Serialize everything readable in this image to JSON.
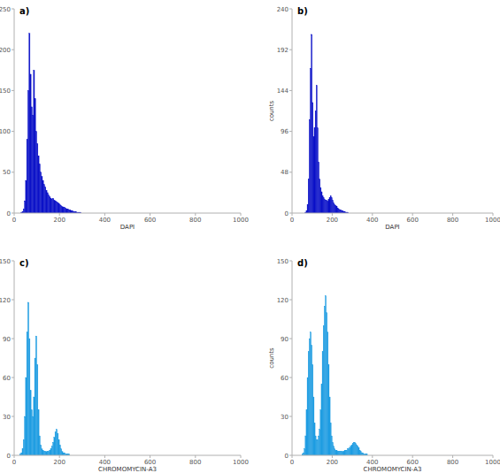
{
  "chart_data": [
    {
      "type": "histogram",
      "title": "a)",
      "x_label": "DAPI",
      "color": "#0c12c8",
      "bins": [
        0,
        5,
        10,
        15,
        20,
        25,
        30,
        35,
        40,
        45,
        50,
        55,
        60,
        65,
        70,
        75,
        80,
        85,
        90,
        95,
        100,
        105,
        110,
        115,
        120,
        125,
        130,
        135,
        140,
        145,
        150,
        155,
        160,
        165,
        170,
        175,
        180,
        185,
        190,
        195,
        200,
        205,
        210,
        215,
        220,
        225,
        230,
        235,
        240,
        245,
        250,
        255,
        260,
        265,
        270,
        275,
        280,
        285,
        290,
        295,
        300,
        305,
        310,
        315,
        320,
        325,
        330,
        335,
        340,
        345,
        350,
        355,
        360,
        365,
        370,
        375,
        380,
        385,
        390,
        395,
        400
      ],
      "values": [
        0,
        0,
        0,
        0,
        0,
        0,
        1,
        2,
        5,
        15,
        40,
        90,
        150,
        220,
        170,
        130,
        120,
        175,
        140,
        100,
        85,
        70,
        60,
        50,
        45,
        40,
        35,
        32,
        28,
        25,
        22,
        20,
        18,
        17,
        18,
        16,
        15,
        14,
        13,
        12,
        10,
        9,
        8,
        7,
        7,
        6,
        5,
        5,
        4,
        4,
        3,
        3,
        2,
        2,
        2,
        1,
        1,
        1,
        1,
        0,
        0,
        0,
        0,
        0,
        0,
        0,
        0,
        0,
        0,
        0,
        0,
        0,
        0,
        0,
        0,
        0,
        0,
        0,
        0,
        0
      ],
      "xlim": [
        0,
        1000
      ],
      "ylim": [
        0,
        250
      ],
      "xticks": [
        0,
        200,
        400,
        600,
        800,
        1000
      ],
      "yticks": [
        0,
        50,
        100,
        150,
        200,
        250
      ]
    },
    {
      "type": "histogram",
      "title": "b)",
      "x_label": "DAPI",
      "y_label": "counts",
      "color": "#0c12c8",
      "bins": [
        0,
        5,
        10,
        15,
        20,
        25,
        30,
        35,
        40,
        45,
        50,
        55,
        60,
        65,
        70,
        75,
        80,
        85,
        90,
        95,
        100,
        105,
        110,
        115,
        120,
        125,
        130,
        135,
        140,
        145,
        150,
        155,
        160,
        165,
        170,
        175,
        180,
        185,
        190,
        195,
        200,
        205,
        210,
        215,
        220,
        225,
        230,
        235,
        240,
        245,
        250,
        255,
        260,
        265,
        270,
        275,
        280,
        285,
        290,
        295,
        300,
        305,
        310,
        315,
        320,
        325,
        330,
        335,
        340,
        345,
        350,
        355,
        360,
        365,
        370,
        375,
        380,
        385,
        390,
        395,
        400
      ],
      "values": [
        0,
        0,
        0,
        0,
        0,
        0,
        0,
        0,
        0,
        0,
        0,
        0,
        0,
        1,
        3,
        10,
        40,
        110,
        170,
        210,
        130,
        90,
        100,
        120,
        150,
        100,
        60,
        40,
        30,
        25,
        20,
        18,
        16,
        15,
        15,
        14,
        16,
        18,
        20,
        18,
        15,
        12,
        10,
        9,
        8,
        6,
        5,
        4,
        4,
        3,
        3,
        2,
        2,
        1,
        1,
        1,
        0,
        0,
        0,
        0,
        0,
        0,
        0,
        0,
        0,
        0,
        0,
        0,
        0,
        0,
        0,
        0,
        0,
        0,
        0,
        0,
        0,
        0,
        0,
        0
      ],
      "xlim": [
        0,
        1000
      ],
      "ylim": [
        0,
        240
      ],
      "xticks": [
        0,
        200,
        400,
        600,
        800,
        1000
      ],
      "yticks": [
        0,
        48,
        96,
        144,
        192,
        240
      ]
    },
    {
      "type": "histogram",
      "title": "c)",
      "x_label": "CHROMOMYCIN-A3",
      "color": "#1f9de2",
      "bins": [
        0,
        5,
        10,
        15,
        20,
        25,
        30,
        35,
        40,
        45,
        50,
        55,
        60,
        65,
        70,
        75,
        80,
        85,
        90,
        95,
        100,
        105,
        110,
        115,
        120,
        125,
        130,
        135,
        140,
        145,
        150,
        155,
        160,
        165,
        170,
        175,
        180,
        185,
        190,
        195,
        200,
        205,
        210,
        215,
        220,
        225,
        230,
        235,
        240,
        245,
        250,
        255,
        260,
        265,
        270,
        275,
        280,
        285,
        290,
        295,
        300,
        305,
        310,
        315,
        320,
        325,
        330,
        335,
        340,
        345,
        350,
        355,
        360,
        365,
        370,
        375,
        380,
        385,
        390,
        395,
        400
      ],
      "values": [
        0,
        0,
        0,
        0,
        0,
        1,
        2,
        5,
        12,
        30,
        60,
        95,
        118,
        90,
        50,
        35,
        30,
        45,
        75,
        92,
        70,
        35,
        15,
        8,
        5,
        4,
        3,
        3,
        3,
        3,
        3,
        4,
        5,
        7,
        10,
        14,
        18,
        20,
        17,
        12,
        8,
        5,
        3,
        2,
        2,
        1,
        1,
        1,
        1,
        0,
        0,
        0,
        0,
        0,
        0,
        0,
        0,
        0,
        0,
        0,
        0,
        0,
        0,
        0,
        0,
        0,
        0,
        0,
        0,
        0,
        0,
        0,
        0,
        0,
        0,
        0,
        0,
        0,
        0,
        0
      ],
      "xlim": [
        0,
        1000
      ],
      "ylim": [
        0,
        150
      ],
      "xticks": [
        0,
        200,
        400,
        600,
        800,
        1000
      ],
      "yticks": [
        0,
        30,
        60,
        90,
        120,
        150
      ]
    },
    {
      "type": "histogram",
      "title": "d)",
      "x_label": "CHROMOMYCIN-A3",
      "y_label": "counts",
      "color": "#1f9de2",
      "bins": [
        0,
        5,
        10,
        15,
        20,
        25,
        30,
        35,
        40,
        45,
        50,
        55,
        60,
        65,
        70,
        75,
        80,
        85,
        90,
        95,
        100,
        105,
        110,
        115,
        120,
        125,
        130,
        135,
        140,
        145,
        150,
        155,
        160,
        165,
        170,
        175,
        180,
        185,
        190,
        195,
        200,
        205,
        210,
        215,
        220,
        225,
        230,
        235,
        240,
        245,
        250,
        255,
        260,
        265,
        270,
        275,
        280,
        285,
        290,
        295,
        300,
        305,
        310,
        315,
        320,
        325,
        330,
        335,
        340,
        345,
        350,
        355,
        360,
        365,
        370,
        375,
        380,
        385,
        390,
        395,
        400
      ],
      "values": [
        0,
        0,
        0,
        0,
        0,
        0,
        0,
        0,
        0,
        0,
        1,
        2,
        5,
        15,
        35,
        60,
        80,
        90,
        95,
        85,
        70,
        45,
        25,
        15,
        12,
        12,
        15,
        20,
        35,
        55,
        80,
        100,
        115,
        123,
        110,
        95,
        70,
        45,
        25,
        15,
        10,
        7,
        5,
        4,
        4,
        3,
        3,
        3,
        3,
        3,
        3,
        3,
        4,
        4,
        4,
        5,
        5,
        6,
        7,
        8,
        9,
        10,
        10,
        9,
        8,
        7,
        6,
        4,
        3,
        2,
        2,
        1,
        1,
        1,
        1,
        0,
        0,
        0,
        0,
        0
      ],
      "xlim": [
        0,
        1000
      ],
      "ylim": [
        0,
        150
      ],
      "xticks": [
        0,
        200,
        400,
        600,
        800,
        1000
      ],
      "yticks": [
        0,
        30,
        60,
        90,
        120,
        150
      ]
    }
  ]
}
